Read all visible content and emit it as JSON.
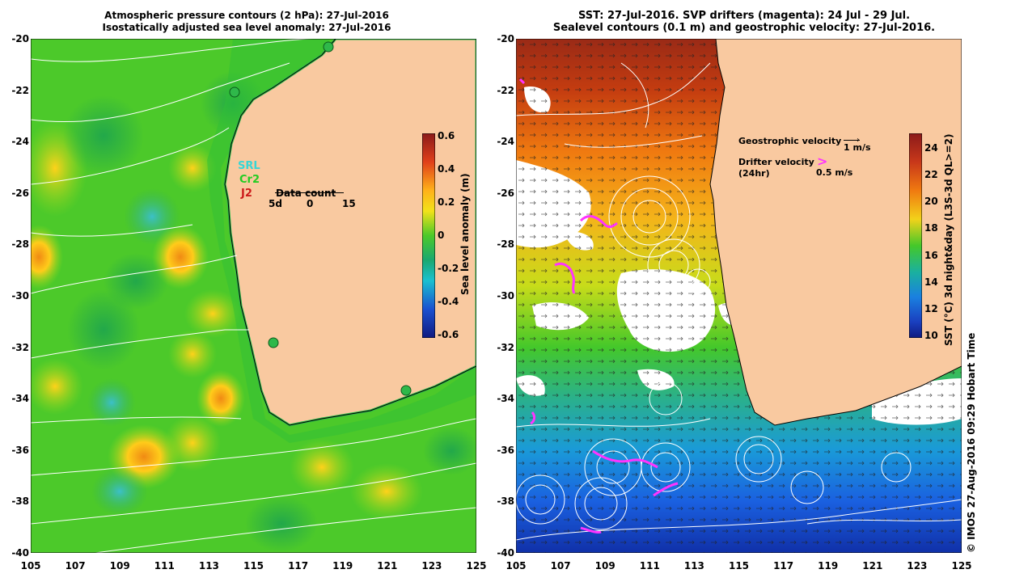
{
  "left_panel": {
    "title_line1": "Atmospheric pressure contours (2 hPa): 27-Jul-2016",
    "title_line2": "Isostatically adjusted sea level anomaly: 27-Jul-2016",
    "y_ticks": [
      "-20",
      "-22",
      "-24",
      "-26",
      "-28",
      "-30",
      "-32",
      "-34",
      "-36",
      "-38",
      "-40"
    ],
    "x_ticks": [
      "105",
      "107",
      "109",
      "111",
      "113",
      "115",
      "117",
      "119",
      "121",
      "123",
      "125"
    ],
    "colorbar": {
      "title": "Sea level anomaly (m)",
      "ticks": [
        "0.6",
        "0.4",
        "0.2",
        "0",
        "-0.2",
        "-0.4",
        "-0.6"
      ]
    },
    "legend": {
      "srl": "SRL",
      "cr2": "Cr2",
      "j2": "J2",
      "data_count": "Data count",
      "scale_5d": "5d",
      "scale_0": "0",
      "scale_15": "15"
    },
    "colors": {
      "land": "#f9c9a0",
      "ocean": "#4cc92a",
      "coast": "#000000",
      "contour": "#ffffff"
    }
  },
  "right_panel": {
    "title_line1": "SST: 27-Jul-2016. SVP drifters (magenta): 24 Jul - 29 Jul.",
    "title_line2": "Sealevel contours (0.1 m) and geostrophic velocity: 27-Jul-2016.",
    "y_ticks": [
      "-20",
      "-22",
      "-24",
      "-26",
      "-28",
      "-30",
      "-32",
      "-34",
      "-36",
      "-38",
      "-40"
    ],
    "x_ticks": [
      "105",
      "107",
      "109",
      "111",
      "113",
      "115",
      "117",
      "119",
      "121",
      "123",
      "125"
    ],
    "colorbar": {
      "title": "SST (°C) 3d night&day (L3S-3d QL>=2)",
      "ticks": [
        "24",
        "22",
        "20",
        "18",
        "16",
        "14",
        "12",
        "10"
      ]
    },
    "legend": {
      "geo_label": "Geostrophic velocity",
      "geo_speed": "1 m/s",
      "drifter_label": "Drifter velocity",
      "drifter_sub": "(24hr)",
      "drifter_speed": "0.5 m/s"
    },
    "colors": {
      "land": "#f9c9a0",
      "drifter": "#ff33ff",
      "warm": "#b0301a",
      "cool": "#1050e0"
    }
  },
  "timestamp": "© IMOS 27-Aug-2016 09:29 Hobart Time"
}
